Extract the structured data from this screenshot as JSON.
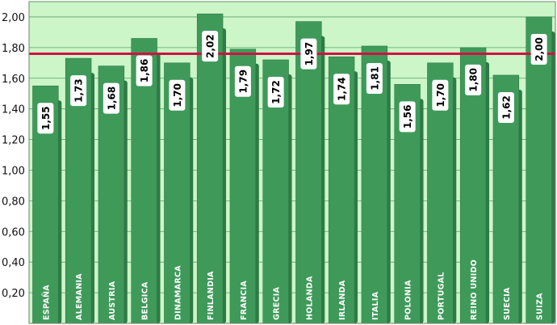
{
  "chart_data": {
    "type": "bar",
    "title": "",
    "xlabel": "",
    "ylabel": "",
    "categories": [
      "ESPAÑA",
      "ALEMANIA",
      "AUSTRIA",
      "BELGICA",
      "DINAMARCA",
      "FINLANDIA",
      "FRANCIA",
      "GRECIA",
      "HOLANDA",
      "IRLANDA",
      "ITALIA",
      "POLONIA",
      "PORTUGAL",
      "REINO UNIDO",
      "SUECIA",
      "SUIZA"
    ],
    "values": [
      1.55,
      1.73,
      1.68,
      1.86,
      1.7,
      2.02,
      1.79,
      1.72,
      1.97,
      1.74,
      1.81,
      1.56,
      1.7,
      1.8,
      1.62,
      2.0
    ],
    "value_labels": [
      "1,55",
      "1,73",
      "1,68",
      "1,86",
      "1,70",
      "2,02",
      "1,79",
      "1,72",
      "1,97",
      "1,74",
      "1,81",
      "1,56",
      "1,70",
      "1,80",
      "1,62",
      "2,00"
    ],
    "ylim": [
      0,
      2.1
    ],
    "yticks": [
      0.2,
      0.4,
      0.6,
      0.8,
      1.0,
      1.2,
      1.4,
      1.6,
      1.8,
      2.0
    ],
    "ytick_labels": [
      "0,20",
      "0,40",
      "0,60",
      "0,80",
      "1,00",
      "1,20",
      "1,40",
      "1,60",
      "1,80",
      "2,00"
    ],
    "reference_line": 1.76,
    "grid": true,
    "legend": "none",
    "colors": {
      "bar": "#3f9a5a",
      "bar_shadow": "#2f7a46",
      "background": "#ccf5c8",
      "gridline": "#5aa36a",
      "reference_line": "#cc1244",
      "label_box": "#ffffff"
    }
  }
}
